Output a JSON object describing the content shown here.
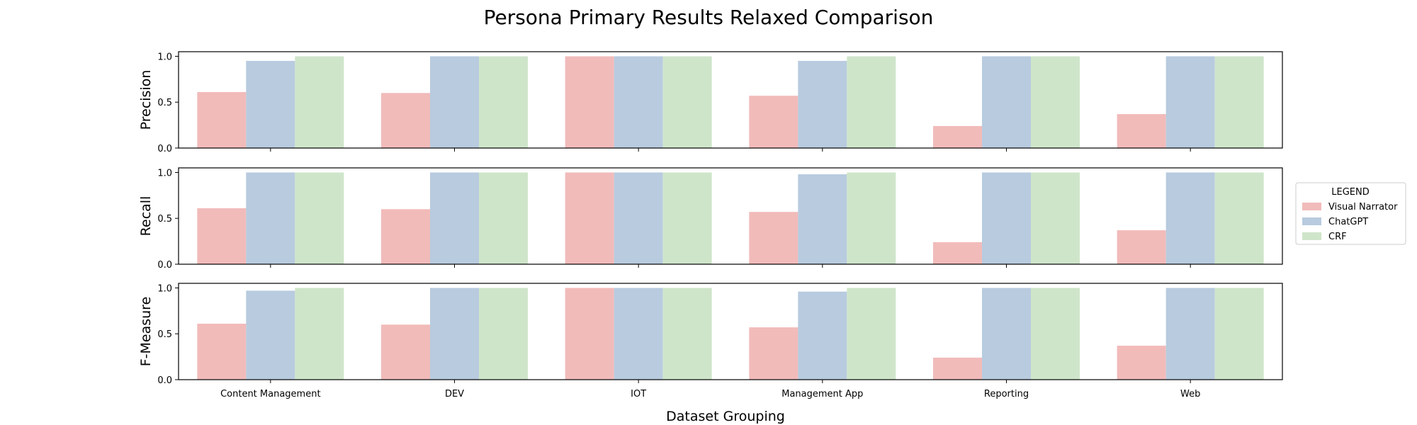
{
  "chart_data": {
    "type": "bar",
    "title": "Persona Primary Results Relaxed Comparison",
    "xlabel": "Dataset Grouping",
    "categories": [
      "Content Management",
      "DEV",
      "IOT",
      "Management App",
      "Reporting",
      "Web"
    ],
    "ylim": [
      0,
      1.05
    ],
    "yticks": [
      "0.0",
      "0.5",
      "1.0"
    ],
    "grid": false,
    "legend": {
      "title": "LEGEND",
      "placement": "right",
      "entries": [
        "Visual Narrator",
        "ChatGPT",
        "CRF"
      ]
    },
    "series_colors": [
      "#f1bbba",
      "#b8cbdf",
      "#cfe5ca"
    ],
    "subplots": [
      {
        "ylabel": "Precision",
        "series": [
          {
            "name": "Visual Narrator",
            "values": [
              0.61,
              0.6,
              1.0,
              0.57,
              0.24,
              0.37
            ]
          },
          {
            "name": "ChatGPT",
            "values": [
              0.95,
              1.0,
              1.0,
              0.95,
              1.0,
              1.0
            ]
          },
          {
            "name": "CRF",
            "values": [
              1.0,
              1.0,
              1.0,
              1.0,
              1.0,
              1.0
            ]
          }
        ]
      },
      {
        "ylabel": "Recall",
        "series": [
          {
            "name": "Visual Narrator",
            "values": [
              0.61,
              0.6,
              1.0,
              0.57,
              0.24,
              0.37
            ]
          },
          {
            "name": "ChatGPT",
            "values": [
              1.0,
              1.0,
              1.0,
              0.98,
              1.0,
              1.0
            ]
          },
          {
            "name": "CRF",
            "values": [
              1.0,
              1.0,
              1.0,
              1.0,
              1.0,
              1.0
            ]
          }
        ]
      },
      {
        "ylabel": "F-Measure",
        "series": [
          {
            "name": "Visual Narrator",
            "values": [
              0.61,
              0.6,
              1.0,
              0.57,
              0.24,
              0.37
            ]
          },
          {
            "name": "ChatGPT",
            "values": [
              0.97,
              1.0,
              1.0,
              0.96,
              1.0,
              1.0
            ]
          },
          {
            "name": "CRF",
            "values": [
              1.0,
              1.0,
              1.0,
              1.0,
              1.0,
              1.0
            ]
          }
        ]
      }
    ]
  }
}
